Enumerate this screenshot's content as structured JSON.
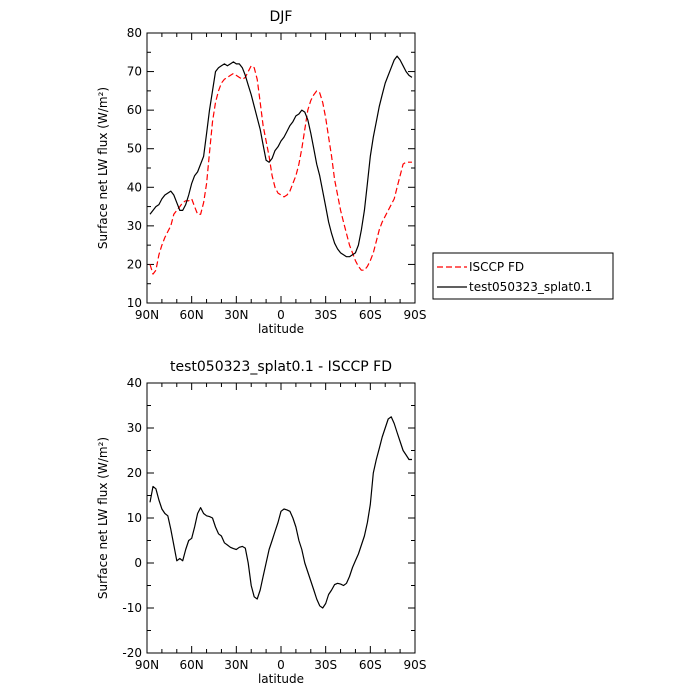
{
  "chart_data": [
    {
      "type": "line",
      "title": "DJF",
      "xlabel": "latitude",
      "ylabel": "Surface net LW flux (W/m²)",
      "xlim": [
        90,
        -90
      ],
      "ylim": [
        10,
        80
      ],
      "xticks": [
        90,
        60,
        30,
        0,
        -30,
        -60,
        -90
      ],
      "xtick_labels": [
        "90N",
        "60N",
        "30N",
        "0",
        "30S",
        "60S",
        "90S"
      ],
      "yticks": [
        10,
        20,
        30,
        40,
        50,
        60,
        70,
        80
      ],
      "legend_position": "right",
      "series": [
        {
          "name": "ISCCP FD",
          "color": "#ff0000",
          "dash": "dashed",
          "x": [
            88,
            86,
            84,
            82,
            80,
            78,
            76,
            74,
            72,
            70,
            68,
            66,
            64,
            62,
            60,
            58,
            56,
            54,
            52,
            50,
            48,
            46,
            44,
            42,
            40,
            38,
            36,
            34,
            32,
            30,
            28,
            26,
            24,
            22,
            20,
            18,
            16,
            14,
            12,
            10,
            8,
            6,
            4,
            2,
            0,
            -2,
            -4,
            -6,
            -8,
            -10,
            -12,
            -14,
            -16,
            -18,
            -20,
            -22,
            -24,
            -26,
            -28,
            -30,
            -32,
            -34,
            -36,
            -38,
            -40,
            -42,
            -44,
            -46,
            -48,
            -50,
            -52,
            -54,
            -56,
            -58,
            -60,
            -62,
            -64,
            -66,
            -68,
            -70,
            -72,
            -74,
            -76,
            -78,
            -80,
            -82,
            -84,
            -86,
            -88
          ],
          "values": [
            20,
            17.5,
            18.5,
            22.5,
            25,
            27,
            28.5,
            30,
            33,
            34,
            35,
            36,
            36.5,
            36.5,
            37,
            35,
            33,
            33,
            36,
            41,
            49,
            57,
            62,
            65,
            67,
            68,
            68.5,
            69,
            69.5,
            69,
            68.5,
            68,
            68.5,
            70,
            71.5,
            71,
            68,
            62,
            56,
            52,
            48,
            43,
            40,
            38.5,
            38,
            37.5,
            38,
            39,
            41,
            43,
            46,
            50,
            55,
            60,
            62.5,
            64,
            65,
            64.5,
            62,
            58,
            53,
            48,
            42,
            38,
            34,
            31,
            28,
            25,
            23,
            21,
            19.5,
            18.5,
            18.5,
            19.5,
            21,
            23,
            26,
            29,
            31,
            32.5,
            34,
            35.5,
            37,
            40,
            43,
            46,
            46.5,
            46.5,
            46.5
          ]
        },
        {
          "name": "test050323_splat0.1",
          "color": "#000000",
          "dash": "solid",
          "x": [
            88,
            86,
            84,
            82,
            80,
            78,
            76,
            74,
            72,
            70,
            68,
            66,
            64,
            62,
            60,
            58,
            56,
            54,
            52,
            50,
            48,
            46,
            44,
            42,
            40,
            38,
            36,
            34,
            32,
            30,
            28,
            26,
            24,
            22,
            20,
            18,
            16,
            14,
            12,
            10,
            8,
            6,
            4,
            2,
            0,
            -2,
            -4,
            -6,
            -8,
            -10,
            -12,
            -14,
            -16,
            -18,
            -20,
            -22,
            -24,
            -26,
            -28,
            -30,
            -32,
            -34,
            -36,
            -38,
            -40,
            -42,
            -44,
            -46,
            -48,
            -50,
            -52,
            -54,
            -56,
            -58,
            -60,
            -62,
            -64,
            -66,
            -68,
            -70,
            -72,
            -74,
            -76,
            -78,
            -80,
            -82,
            -84,
            -86,
            -88
          ],
          "values": [
            33,
            34,
            35,
            35.5,
            37,
            38,
            38.5,
            39,
            38,
            36,
            34,
            34,
            35.5,
            38,
            41,
            43,
            44,
            46,
            48,
            54,
            60,
            65,
            70,
            71,
            71.5,
            72,
            71.5,
            72,
            72.5,
            72,
            72,
            71,
            69,
            66.5,
            64,
            61,
            58,
            55,
            51,
            47,
            46.5,
            47.5,
            49.5,
            50.5,
            52,
            53,
            54.5,
            56,
            57,
            58.5,
            59,
            60,
            59.5,
            57.5,
            54,
            50,
            46,
            43,
            39,
            35,
            31,
            28,
            25.5,
            24,
            23,
            22.5,
            22,
            22,
            22.5,
            23,
            25,
            29,
            34,
            41,
            48,
            53,
            57,
            61,
            64,
            67,
            69,
            71,
            73,
            74,
            73,
            71.5,
            70,
            69,
            68.5
          ]
        }
      ]
    },
    {
      "type": "line",
      "title": "test050323_splat0.1 - ISCCP FD",
      "xlabel": "latitude",
      "ylabel": "Surface net LW flux (W/m²)",
      "xlim": [
        90,
        -90
      ],
      "ylim": [
        -20,
        40
      ],
      "xticks": [
        90,
        60,
        30,
        0,
        -30,
        -60,
        -90
      ],
      "xtick_labels": [
        "90N",
        "60N",
        "30N",
        "0",
        "30S",
        "60S",
        "90S"
      ],
      "yticks": [
        -20,
        -10,
        0,
        10,
        20,
        30,
        40
      ],
      "series": [
        {
          "color": "#000000",
          "dash": "solid",
          "x": [
            88,
            86,
            84,
            82,
            80,
            78,
            76,
            74,
            72,
            70,
            68,
            66,
            64,
            62,
            60,
            58,
            56,
            54,
            52,
            50,
            48,
            46,
            44,
            42,
            40,
            38,
            36,
            34,
            32,
            30,
            28,
            26,
            24,
            22,
            20,
            18,
            16,
            14,
            12,
            10,
            8,
            6,
            4,
            2,
            0,
            -2,
            -4,
            -6,
            -8,
            -10,
            -12,
            -14,
            -16,
            -18,
            -20,
            -22,
            -24,
            -26,
            -28,
            -30,
            -32,
            -34,
            -36,
            -38,
            -40,
            -42,
            -44,
            -46,
            -48,
            -50,
            -52,
            -54,
            -56,
            -58,
            -60,
            -62,
            -64,
            -66,
            -68,
            -70,
            -72,
            -74,
            -76,
            -78,
            -80,
            -82,
            -84,
            -86,
            -88
          ],
          "values": [
            13.5,
            17,
            16.5,
            14,
            12,
            11,
            10.5,
            7.5,
            4,
            0.5,
            1,
            0.5,
            3,
            5,
            5.5,
            8,
            11,
            12.3,
            11,
            10.5,
            10.3,
            10,
            8,
            6.5,
            6,
            4.5,
            4,
            3.5,
            3.2,
            3,
            3.5,
            3.7,
            3.3,
            0,
            -5,
            -7.5,
            -8,
            -6,
            -3,
            0,
            3,
            5,
            7,
            9,
            11.5,
            12,
            11.8,
            11.5,
            10,
            8,
            5,
            3,
            0,
            -2,
            -4,
            -6,
            -8,
            -9.5,
            -10,
            -9,
            -7,
            -6,
            -4.8,
            -4.5,
            -4.7,
            -5,
            -4.5,
            -3,
            -1,
            0.5,
            2,
            4,
            6,
            9,
            13,
            20,
            23,
            25.5,
            28,
            30,
            32,
            32.5,
            31,
            29,
            27,
            25,
            24,
            23,
            23
          ]
        }
      ]
    }
  ],
  "legend": {
    "items": [
      {
        "label": "ISCCP FD",
        "style": "dashed",
        "color": "#ff0000"
      },
      {
        "label": "test050323_splat0.1",
        "style": "solid",
        "color": "#000000"
      }
    ]
  }
}
